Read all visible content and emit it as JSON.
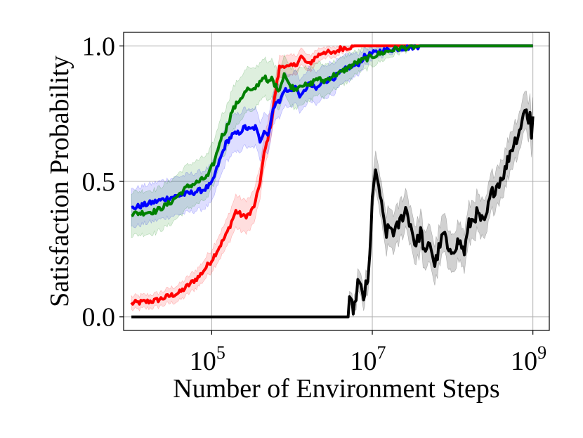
{
  "chart_data": {
    "type": "line",
    "title": "",
    "xlabel": "Number of Environment Steps",
    "ylabel": "Satisfaction Probability",
    "xscale": "log",
    "xlim": [
      8000,
      1600000000
    ],
    "ylim": [
      -0.05,
      1.05
    ],
    "xticks": [
      {
        "value": 100000,
        "base": "10",
        "exp": "5"
      },
      {
        "value": 10000000,
        "base": "10",
        "exp": "7"
      },
      {
        "value": 1000000000,
        "base": "10",
        "exp": "9"
      }
    ],
    "yticks": [
      {
        "value": 0.0,
        "label": "0.0"
      },
      {
        "value": 0.5,
        "label": "0.5"
      },
      {
        "value": 1.0,
        "label": "1.0"
      }
    ],
    "grid": true,
    "series": [
      {
        "name": "red",
        "color": "#ff0000",
        "band_opacity": 0.13,
        "points": [
          [
            10000,
            0.05
          ],
          [
            20000,
            0.06
          ],
          [
            40000,
            0.09
          ],
          [
            70000,
            0.15
          ],
          [
            100000,
            0.21
          ],
          [
            150000,
            0.3
          ],
          [
            200000,
            0.39
          ],
          [
            250000,
            0.37
          ],
          [
            300000,
            0.38
          ],
          [
            350000,
            0.42
          ],
          [
            400000,
            0.5
          ],
          [
            450000,
            0.6
          ],
          [
            500000,
            0.66
          ],
          [
            560000,
            0.73
          ],
          [
            630000,
            0.84
          ],
          [
            700000,
            0.92
          ],
          [
            800000,
            0.93
          ],
          [
            900000,
            0.92
          ],
          [
            1100000,
            0.93
          ],
          [
            1300000,
            0.96
          ],
          [
            1600000,
            0.93
          ],
          [
            2000000,
            0.96
          ],
          [
            2500000,
            0.98
          ],
          [
            3200000,
            0.97
          ],
          [
            4000000,
            0.99
          ],
          [
            6000000,
            1.0
          ],
          [
            8000000,
            1.0
          ],
          [
            10000000,
            1.0
          ],
          [
            1000000000,
            1.0
          ]
        ],
        "band": [
          0.025,
          0.025,
          0.03,
          0.035,
          0.04,
          0.05,
          0.06,
          0.06,
          0.06,
          0.06,
          0.06,
          0.06,
          0.06,
          0.05,
          0.05,
          0.04,
          0.04,
          0.04,
          0.035,
          0.03,
          0.03,
          0.025,
          0.02,
          0.02,
          0.015,
          0.005,
          0.0,
          0.0,
          0.0
        ]
      },
      {
        "name": "blue",
        "color": "#0000ff",
        "band_opacity": 0.13,
        "points": [
          [
            10000,
            0.4
          ],
          [
            30000,
            0.44
          ],
          [
            60000,
            0.46
          ],
          [
            80000,
            0.47
          ],
          [
            100000,
            0.49
          ],
          [
            120000,
            0.56
          ],
          [
            150000,
            0.64
          ],
          [
            180000,
            0.67
          ],
          [
            220000,
            0.68
          ],
          [
            260000,
            0.7
          ],
          [
            300000,
            0.69
          ],
          [
            350000,
            0.7
          ],
          [
            400000,
            0.65
          ],
          [
            450000,
            0.69
          ],
          [
            500000,
            0.67
          ],
          [
            560000,
            0.74
          ],
          [
            630000,
            0.8
          ],
          [
            700000,
            0.79
          ],
          [
            800000,
            0.84
          ],
          [
            900000,
            0.83
          ],
          [
            1100000,
            0.85
          ],
          [
            1300000,
            0.81
          ],
          [
            1600000,
            0.86
          ],
          [
            2000000,
            0.84
          ],
          [
            2500000,
            0.87
          ],
          [
            3200000,
            0.88
          ],
          [
            4000000,
            0.9
          ],
          [
            5000000,
            0.92
          ],
          [
            6500000,
            0.93
          ],
          [
            8000000,
            0.96
          ],
          [
            12000000,
            0.98
          ],
          [
            20000000,
            0.99
          ],
          [
            40000000,
            1.0
          ],
          [
            1000000000,
            1.0
          ]
        ],
        "band": [
          0.07,
          0.07,
          0.07,
          0.07,
          0.07,
          0.07,
          0.07,
          0.07,
          0.07,
          0.07,
          0.07,
          0.07,
          0.07,
          0.07,
          0.07,
          0.06,
          0.06,
          0.06,
          0.06,
          0.06,
          0.06,
          0.06,
          0.06,
          0.06,
          0.06,
          0.06,
          0.05,
          0.05,
          0.04,
          0.03,
          0.02,
          0.01,
          0.0,
          0.0
        ]
      },
      {
        "name": "green",
        "color": "#008000",
        "band_opacity": 0.13,
        "points": [
          [
            10000,
            0.38
          ],
          [
            20000,
            0.39
          ],
          [
            30000,
            0.42
          ],
          [
            50000,
            0.48
          ],
          [
            70000,
            0.5
          ],
          [
            90000,
            0.52
          ],
          [
            110000,
            0.58
          ],
          [
            130000,
            0.66
          ],
          [
            150000,
            0.69
          ],
          [
            180000,
            0.76
          ],
          [
            220000,
            0.8
          ],
          [
            280000,
            0.84
          ],
          [
            320000,
            0.83
          ],
          [
            380000,
            0.86
          ],
          [
            450000,
            0.89
          ],
          [
            500000,
            0.86
          ],
          [
            560000,
            0.88
          ],
          [
            630000,
            0.85
          ],
          [
            700000,
            0.84
          ],
          [
            800000,
            0.9
          ],
          [
            900000,
            0.86
          ],
          [
            1100000,
            0.84
          ],
          [
            1300000,
            0.86
          ],
          [
            1600000,
            0.85
          ],
          [
            2000000,
            0.88
          ],
          [
            2500000,
            0.87
          ],
          [
            3200000,
            0.89
          ],
          [
            4000000,
            0.9
          ],
          [
            5000000,
            0.92
          ],
          [
            6500000,
            0.94
          ],
          [
            8000000,
            0.95
          ],
          [
            12000000,
            0.97
          ],
          [
            20000000,
            0.99
          ],
          [
            40000000,
            1.0
          ],
          [
            1000000000,
            1.0
          ]
        ],
        "band": [
          0.08,
          0.08,
          0.08,
          0.08,
          0.08,
          0.08,
          0.08,
          0.08,
          0.08,
          0.08,
          0.08,
          0.08,
          0.08,
          0.07,
          0.07,
          0.07,
          0.07,
          0.07,
          0.07,
          0.07,
          0.07,
          0.07,
          0.07,
          0.06,
          0.06,
          0.06,
          0.05,
          0.05,
          0.05,
          0.04,
          0.04,
          0.03,
          0.02,
          0.0,
          0.0
        ]
      },
      {
        "name": "black",
        "color": "#000000",
        "band_opacity": 0.18,
        "points": [
          [
            10000,
            0.0
          ],
          [
            5000000,
            0.0
          ],
          [
            5200000,
            0.05
          ],
          [
            6000000,
            0.03
          ],
          [
            6600000,
            0.13
          ],
          [
            7200000,
            0.1
          ],
          [
            7800000,
            0.07
          ],
          [
            8300000,
            0.11
          ],
          [
            8800000,
            0.12
          ],
          [
            9300000,
            0.22
          ],
          [
            10000000,
            0.45
          ],
          [
            11000000,
            0.52
          ],
          [
            12000000,
            0.49
          ],
          [
            13500000,
            0.37
          ],
          [
            15000000,
            0.31
          ],
          [
            17000000,
            0.33
          ],
          [
            19000000,
            0.31
          ],
          [
            22000000,
            0.35
          ],
          [
            26000000,
            0.4
          ],
          [
            30000000,
            0.34
          ],
          [
            35000000,
            0.26
          ],
          [
            40000000,
            0.32
          ],
          [
            46000000,
            0.22
          ],
          [
            52000000,
            0.28
          ],
          [
            60000000,
            0.19
          ],
          [
            70000000,
            0.27
          ],
          [
            80000000,
            0.31
          ],
          [
            90000000,
            0.22
          ],
          [
            100000000,
            0.25
          ],
          [
            120000000,
            0.28
          ],
          [
            140000000,
            0.24
          ],
          [
            160000000,
            0.34
          ],
          [
            200000000,
            0.38
          ],
          [
            250000000,
            0.34
          ],
          [
            300000000,
            0.45
          ],
          [
            380000000,
            0.5
          ],
          [
            450000000,
            0.54
          ],
          [
            520000000,
            0.61
          ],
          [
            600000000,
            0.65
          ],
          [
            680000000,
            0.69
          ],
          [
            760000000,
            0.74
          ],
          [
            830000000,
            0.78
          ],
          [
            880000000,
            0.71
          ],
          [
            920000000,
            0.75
          ],
          [
            960000000,
            0.66
          ],
          [
            1000000000,
            0.74
          ]
        ],
        "band": [
          0.0,
          0.0,
          0.02,
          0.03,
          0.04,
          0.04,
          0.04,
          0.04,
          0.05,
          0.05,
          0.06,
          0.07,
          0.07,
          0.07,
          0.07,
          0.07,
          0.07,
          0.07,
          0.07,
          0.07,
          0.07,
          0.07,
          0.07,
          0.07,
          0.07,
          0.07,
          0.07,
          0.07,
          0.07,
          0.07,
          0.07,
          0.07,
          0.07,
          0.07,
          0.07,
          0.07,
          0.07,
          0.07,
          0.07,
          0.07,
          0.07,
          0.07,
          0.07,
          0.07,
          0.07,
          0.07
        ]
      }
    ]
  }
}
